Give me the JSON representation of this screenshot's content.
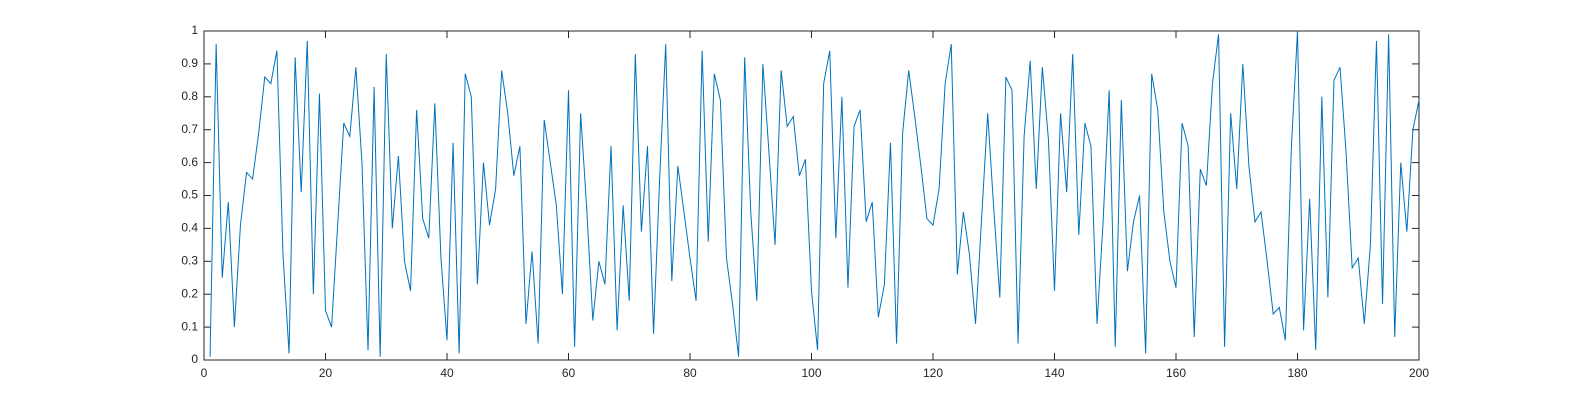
{
  "chart_data": {
    "type": "line",
    "x": [
      1,
      2,
      3,
      4,
      5,
      6,
      7,
      8,
      9,
      10,
      11,
      12,
      13,
      14,
      15,
      16,
      17,
      18,
      19,
      20,
      21,
      22,
      23,
      24,
      25,
      26,
      27,
      28,
      29,
      30,
      31,
      32,
      33,
      34,
      35,
      36,
      37,
      38,
      39,
      40,
      41,
      42,
      43,
      44,
      45,
      46,
      47,
      48,
      49,
      50,
      51,
      52,
      53,
      54,
      55,
      56,
      57,
      58,
      59,
      60,
      61,
      62,
      63,
      64,
      65,
      66,
      67,
      68,
      69,
      70,
      71,
      72,
      73,
      74,
      75,
      76,
      77,
      78,
      79,
      80,
      81,
      82,
      83,
      84,
      85,
      86,
      87,
      88,
      89,
      90,
      91,
      92,
      93,
      94,
      95,
      96,
      97,
      98,
      99,
      100,
      101,
      102,
      103,
      104,
      105,
      106,
      107,
      108,
      109,
      110,
      111,
      112,
      113,
      114,
      115,
      116,
      117,
      118,
      119,
      120,
      121,
      122,
      123,
      124,
      125,
      126,
      127,
      128,
      129,
      130,
      131,
      132,
      133,
      134,
      135,
      136,
      137,
      138,
      139,
      140,
      141,
      142,
      143,
      144,
      145,
      146,
      147,
      148,
      149,
      150,
      151,
      152,
      153,
      154,
      155,
      156,
      157,
      158,
      159,
      160,
      161,
      162,
      163,
      164,
      165,
      166,
      167,
      168,
      169,
      170,
      171,
      172,
      173,
      174,
      175,
      176,
      177,
      178,
      179,
      180,
      181,
      182,
      183,
      184,
      185,
      186,
      187,
      188,
      189,
      190,
      191,
      192,
      193,
      194,
      195,
      196,
      197,
      198,
      199,
      200
    ],
    "values": [
      0.01,
      0.96,
      0.25,
      0.48,
      0.1,
      0.41,
      0.57,
      0.55,
      0.69,
      0.86,
      0.84,
      0.94,
      0.32,
      0.02,
      0.92,
      0.51,
      0.97,
      0.2,
      0.81,
      0.15,
      0.1,
      0.41,
      0.72,
      0.68,
      0.89,
      0.6,
      0.03,
      0.83,
      0.01,
      0.93,
      0.4,
      0.62,
      0.3,
      0.21,
      0.76,
      0.43,
      0.37,
      0.78,
      0.31,
      0.06,
      0.66,
      0.02,
      0.87,
      0.8,
      0.23,
      0.6,
      0.41,
      0.52,
      0.88,
      0.75,
      0.56,
      0.65,
      0.11,
      0.33,
      0.05,
      0.73,
      0.6,
      0.47,
      0.2,
      0.82,
      0.04,
      0.75,
      0.46,
      0.12,
      0.3,
      0.23,
      0.65,
      0.09,
      0.47,
      0.18,
      0.93,
      0.39,
      0.65,
      0.08,
      0.55,
      0.96,
      0.24,
      0.59,
      0.45,
      0.31,
      0.18,
      0.94,
      0.36,
      0.87,
      0.79,
      0.31,
      0.17,
      0.01,
      0.92,
      0.45,
      0.18,
      0.9,
      0.63,
      0.35,
      0.88,
      0.71,
      0.74,
      0.56,
      0.61,
      0.21,
      0.03,
      0.84,
      0.94,
      0.37,
      0.8,
      0.22,
      0.71,
      0.76,
      0.42,
      0.48,
      0.13,
      0.23,
      0.66,
      0.05,
      0.69,
      0.88,
      0.74,
      0.59,
      0.43,
      0.41,
      0.52,
      0.84,
      0.96,
      0.26,
      0.45,
      0.32,
      0.11,
      0.43,
      0.75,
      0.46,
      0.19,
      0.86,
      0.82,
      0.05,
      0.68,
      0.91,
      0.52,
      0.89,
      0.67,
      0.21,
      0.75,
      0.51,
      0.93,
      0.38,
      0.72,
      0.65,
      0.11,
      0.42,
      0.82,
      0.04,
      0.79,
      0.27,
      0.42,
      0.5,
      0.02,
      0.87,
      0.76,
      0.45,
      0.3,
      0.22,
      0.72,
      0.65,
      0.07,
      0.58,
      0.53,
      0.84,
      0.99,
      0.04,
      0.75,
      0.52,
      0.9,
      0.59,
      0.42,
      0.45,
      0.3,
      0.14,
      0.16,
      0.06,
      0.65,
      1.0,
      0.09,
      0.49,
      0.03,
      0.8,
      0.19,
      0.85,
      0.89,
      0.63,
      0.28,
      0.31,
      0.11,
      0.35,
      0.97,
      0.17,
      0.99,
      0.07,
      0.6,
      0.39,
      0.7,
      0.79
    ],
    "color": "#0072bd",
    "xlim": [
      0,
      200
    ],
    "xticks": [
      0,
      20,
      40,
      60,
      80,
      100,
      120,
      140,
      160,
      180,
      200
    ],
    "ylim": [
      0,
      1
    ],
    "yticks": [
      0,
      0.1,
      0.2,
      0.3,
      0.4,
      0.5,
      0.6,
      0.7,
      0.8,
      0.9,
      1
    ]
  }
}
